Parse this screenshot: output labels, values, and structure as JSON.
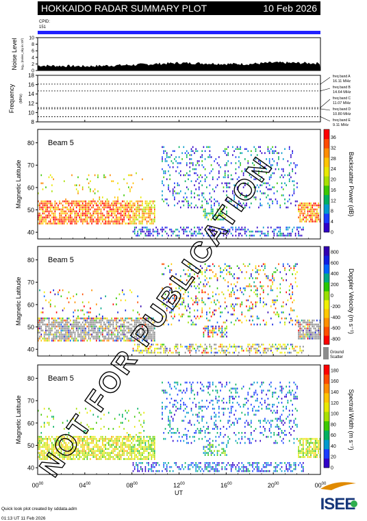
{
  "header": {
    "title": "HOKKAIDO RADAR SUMMARY PLOT",
    "date": "10 Feb 2026"
  },
  "cpid": {
    "label": "CPID:",
    "value": "151"
  },
  "chart_data": [
    {
      "type": "area",
      "ylabel": "Noise Level",
      "ylabel_unit": "log₁₀ (noise_sky in 10²)",
      "ylim": [
        0,
        10
      ],
      "y_ticks": [
        "0",
        "2",
        "4",
        "6",
        "8",
        "10"
      ],
      "x": [
        0,
        2,
        4,
        6,
        8,
        10,
        12,
        14,
        16,
        18,
        20,
        22,
        24
      ],
      "values": [
        1.5,
        1.4,
        1.3,
        1.5,
        1.7,
        2.0,
        2.3,
        2.2,
        2.0,
        2.0,
        2.4,
        2.3,
        2.2
      ]
    },
    {
      "type": "line",
      "ylabel": "Frequency",
      "ylabel_unit": "(MHz)",
      "ylim": [
        8,
        18
      ],
      "y_ticks": [
        "8",
        "10",
        "12",
        "14",
        "16",
        "18"
      ],
      "bands": [
        {
          "name": "freq band A",
          "freq": "16.11 MHz",
          "value": 16.11
        },
        {
          "name": "freq band B",
          "freq": "14.64 MHz",
          "value": 14.64
        },
        {
          "name": "freq band C",
          "freq": "11.07 MHz",
          "value": 11.07
        },
        {
          "name": "freq band D",
          "freq": "10.80 MHz",
          "value": 10.8
        },
        {
          "name": "freq band E",
          "freq": "9.11 MHz",
          "value": 9.11
        }
      ]
    },
    {
      "type": "heatmap",
      "beam": "Beam  5",
      "ylabel": "Magnetic Latitude",
      "ylim": [
        37,
        86
      ],
      "y_ticks": [
        "40",
        "50",
        "60",
        "70",
        "80"
      ],
      "colorbar_label": "Backscatter Power (dB)",
      "colorbar_ticks": [
        "0",
        "4",
        "8",
        "12",
        "16",
        "20",
        "24",
        "28",
        "32",
        "36"
      ],
      "colorbar_range": [
        0,
        39
      ]
    },
    {
      "type": "heatmap",
      "beam": "Beam  5",
      "ylabel": "Magnetic Latitude",
      "ylim": [
        37,
        86
      ],
      "y_ticks": [
        "40",
        "50",
        "60",
        "70",
        "80"
      ],
      "colorbar_label": "Doppler Velocity (m s⁻¹)",
      "colorbar_ticks": [
        "-800",
        "-600",
        "-400",
        "-200",
        "0",
        "200",
        "400",
        "600",
        "800"
      ],
      "colorbar_range": [
        -900,
        900
      ],
      "ground_scatter_label": "Ground Scatter"
    },
    {
      "type": "heatmap",
      "beam": "Beam  5",
      "ylabel": "Magnetic Latitude",
      "ylim": [
        37,
        86
      ],
      "y_ticks": [
        "40",
        "50",
        "60",
        "70",
        "80"
      ],
      "colorbar_label": "Spectral Width (m s⁻¹)",
      "colorbar_ticks": [
        "0",
        "20",
        "40",
        "60",
        "80",
        "100",
        "120",
        "140",
        "160",
        "180"
      ],
      "colorbar_range": [
        0,
        190
      ]
    }
  ],
  "x_axis": {
    "label": "UT",
    "ticks": [
      {
        "hour": "00",
        "sup": "00"
      },
      {
        "hour": "04",
        "sup": "00"
      },
      {
        "hour": "08",
        "sup": "00"
      },
      {
        "hour": "12",
        "sup": "00"
      },
      {
        "hour": "16",
        "sup": "00"
      },
      {
        "hour": "20",
        "sup": "00"
      },
      {
        "hour": "00",
        "sup": "00"
      }
    ]
  },
  "footer": {
    "credit": "Quick look plot created by sddata.adm",
    "timestamp": "01:13 UT 11 Feb 2026",
    "logo_text": "ISEE"
  },
  "watermark": "NOT FOR PUBLICATION"
}
